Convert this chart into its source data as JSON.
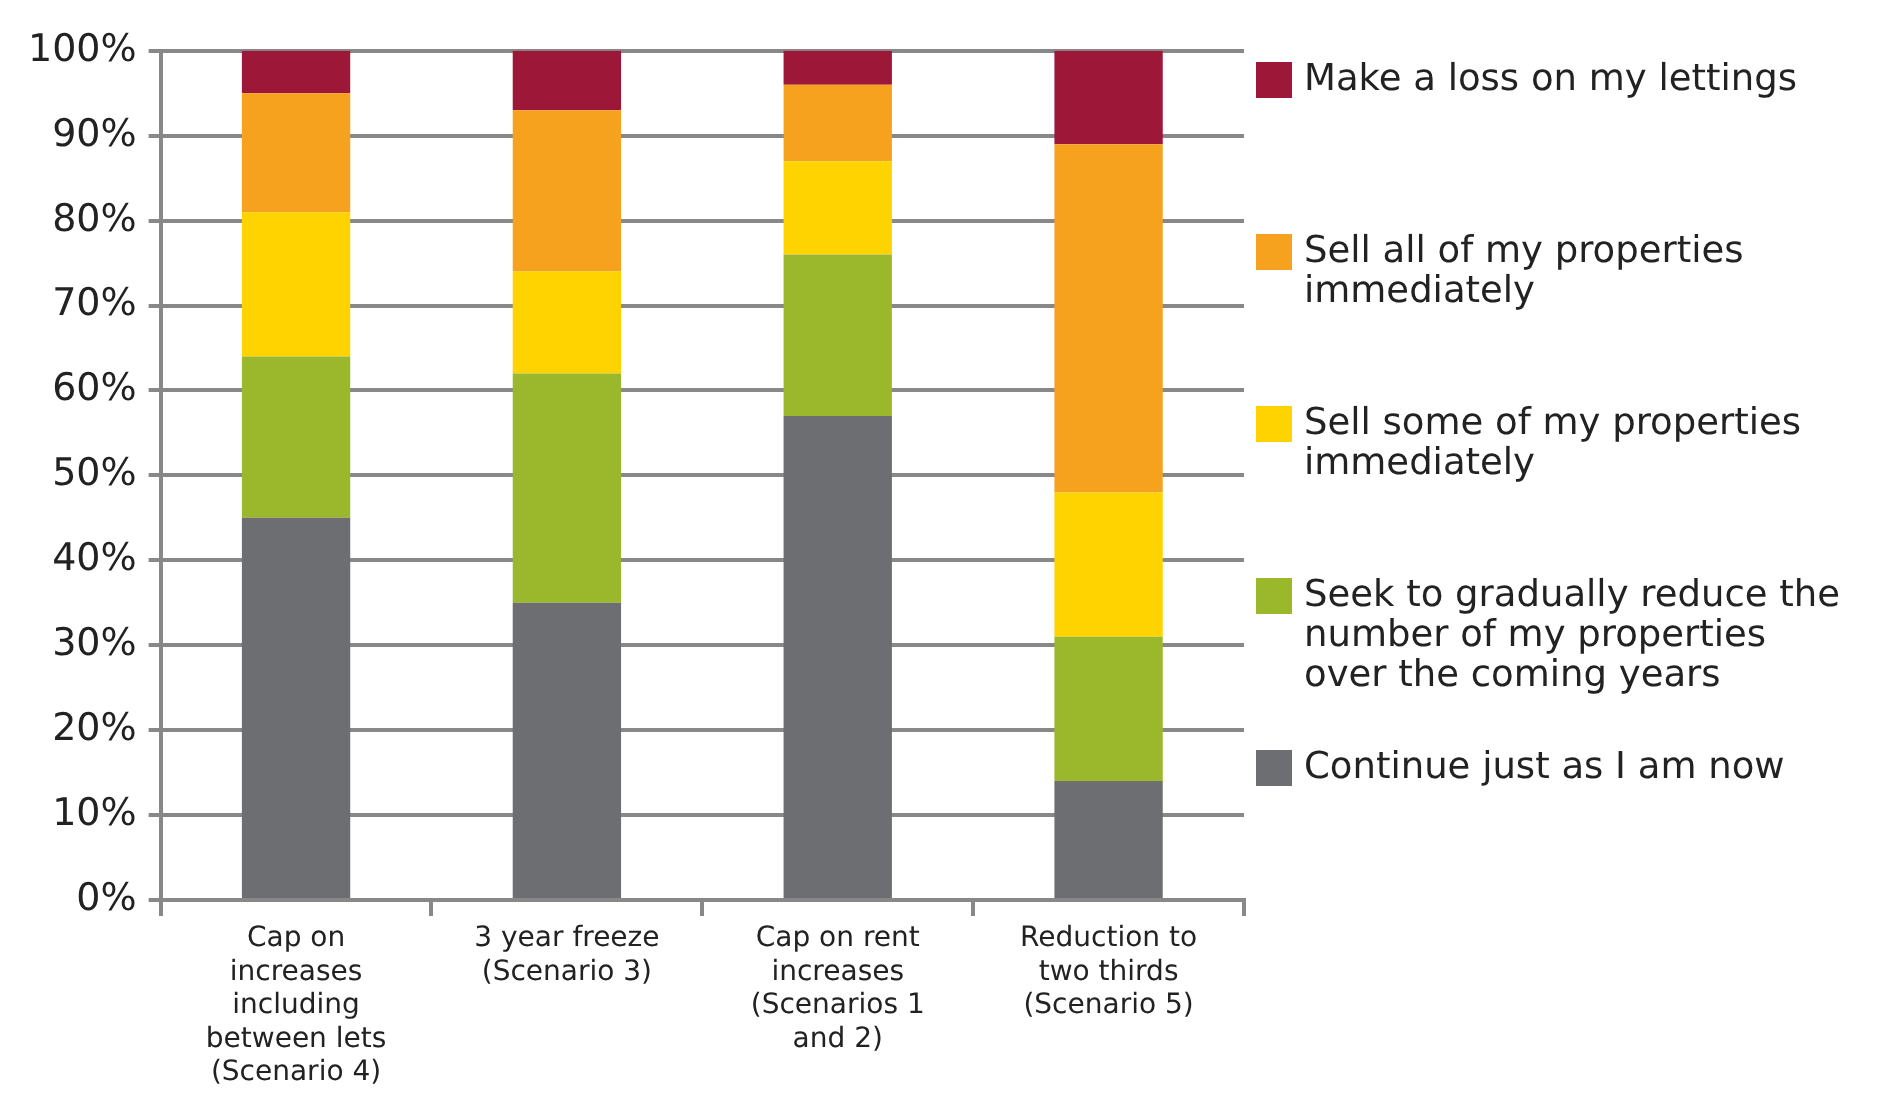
{
  "chart_data": {
    "type": "bar",
    "stacked": true,
    "categories": [
      "Cap on increases including between lets (Scenario 4)",
      "3 year freeze (Scenario 3)",
      "Cap on rent increases (Scenarios 1 and 2)",
      "Reduction to two thirds (Scenario 5)"
    ],
    "series": [
      {
        "name": "Continue just as I am now",
        "color": "#6d6e71",
        "values": [
          45,
          35,
          57,
          14
        ]
      },
      {
        "name": "Seek to gradually reduce the number of my properties over the coming years",
        "color": "#9bb82d",
        "values": [
          19,
          27,
          19,
          17
        ]
      },
      {
        "name": "Sell some of my properties immediately",
        "color": "#fed300",
        "values": [
          17,
          12,
          11,
          17
        ]
      },
      {
        "name": "Sell all of my properties immediately",
        "color": "#f7a21e",
        "values": [
          14,
          19,
          9,
          41
        ]
      },
      {
        "name": "Make a loss on my lettings",
        "color": "#9d1739",
        "values": [
          5,
          7,
          4,
          11
        ]
      }
    ],
    "ylim": [
      0,
      100
    ],
    "yticks": [
      {
        "value": 0,
        "label": "0%"
      },
      {
        "value": 10,
        "label": "10%"
      },
      {
        "value": 20,
        "label": "20%"
      },
      {
        "value": 30,
        "label": "30%"
      },
      {
        "value": 40,
        "label": "40%"
      },
      {
        "value": 50,
        "label": "50%"
      },
      {
        "value": 60,
        "label": "60%"
      },
      {
        "value": 70,
        "label": "70%"
      },
      {
        "value": 80,
        "label": "80%"
      },
      {
        "value": 90,
        "label": "90%"
      },
      {
        "value": 100,
        "label": "100%"
      }
    ],
    "grid": "y",
    "legend": "right"
  }
}
